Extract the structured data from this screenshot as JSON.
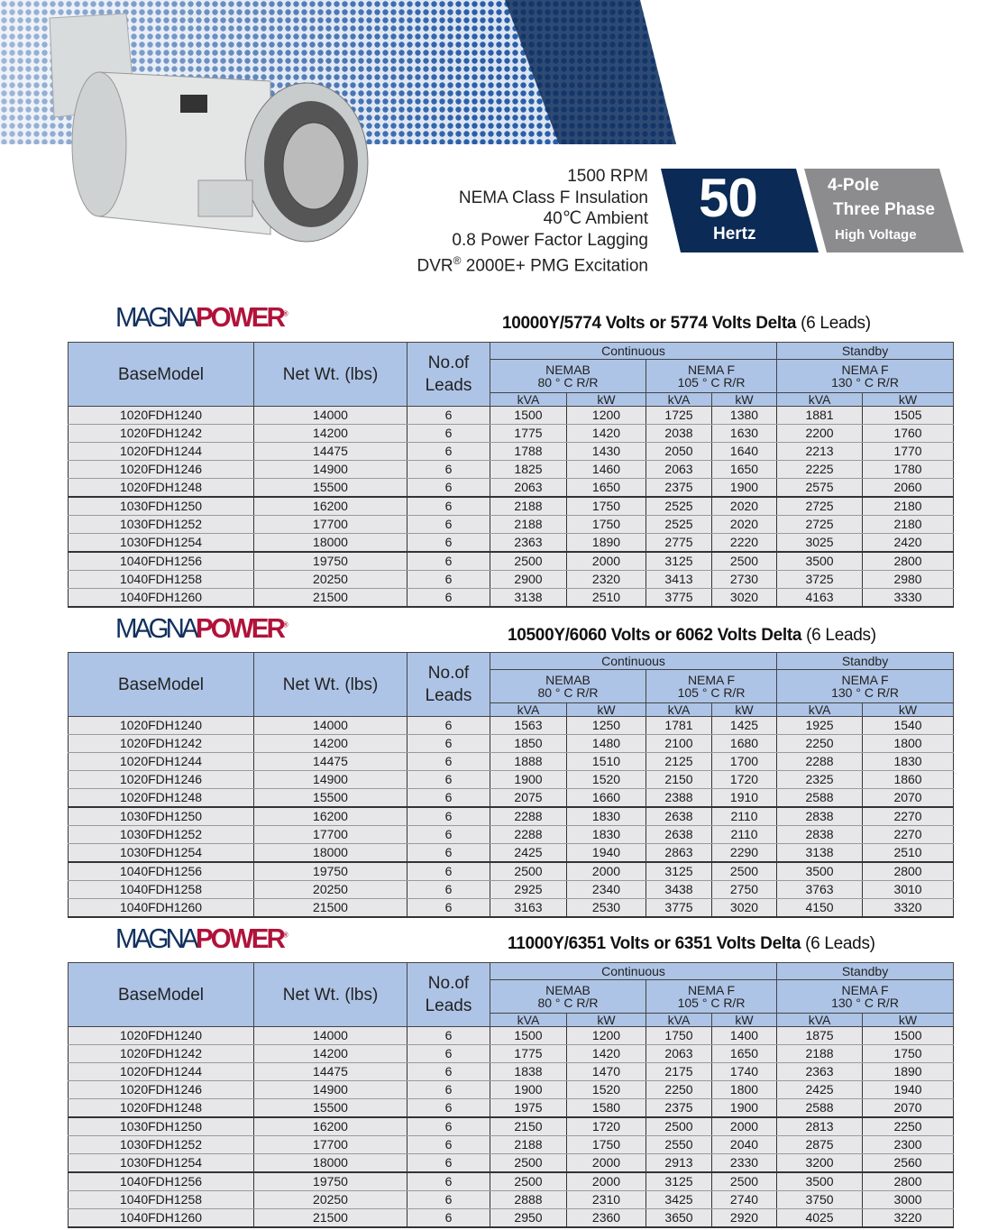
{
  "specs": {
    "lines": [
      "1500 RPM",
      "NEMA Class F Insulation",
      "40℃ Ambient",
      "0.8 Power Factor Lagging"
    ],
    "excitation_prefix": "DVR",
    "excitation_reg": "®",
    "excitation_suffix": " 2000E+ PMG Excitation"
  },
  "frequency": {
    "value": "50",
    "unit": "Hertz"
  },
  "phase": {
    "poles": "4-Pole",
    "phase": "Three Phase",
    "voltage": "High Voltage"
  },
  "colors": {
    "navy": "#0b2a55",
    "header_blue": "#aec4e6",
    "logo_red": "#b0133a",
    "logo_blue": "#12305f"
  },
  "logo": {
    "part1": "MAGNA",
    "part2": "POWER",
    "reg": "®"
  },
  "headers": {
    "base_model": "BaseModel",
    "net_wt": "Net Wt. (lbs)",
    "leads_1": "No.of",
    "leads_2": "Leads",
    "continuous": "Continuous",
    "standby": "Standby",
    "nema_b": "NEMAB",
    "nema_b_temp": "80 ° C R/R",
    "nema_f1": "NEMA F",
    "nema_f1_temp": "105 ° C R/R",
    "nema_f2": "NEMA F",
    "nema_f2_temp": "130 ° C R/R",
    "kva": "kVA",
    "kw": "kW"
  },
  "tables": [
    {
      "title_bold": "10000Y/5774 Volts or 5774 Volts Delta",
      "title_rest": " (6 Leads)",
      "rows": [
        [
          "1020FDH1240",
          "14000",
          "6",
          "1500",
          "1200",
          "1725",
          "1380",
          "1881",
          "1505"
        ],
        [
          "1020FDH1242",
          "14200",
          "6",
          "1775",
          "1420",
          "2038",
          "1630",
          "2200",
          "1760"
        ],
        [
          "1020FDH1244",
          "14475",
          "6",
          "1788",
          "1430",
          "2050",
          "1640",
          "2213",
          "1770"
        ],
        [
          "1020FDH1246",
          "14900",
          "6",
          "1825",
          "1460",
          "2063",
          "1650",
          "2225",
          "1780"
        ],
        [
          "1020FDH1248",
          "15500",
          "6",
          "2063",
          "1650",
          "2375",
          "1900",
          "2575",
          "2060"
        ],
        [
          "1030FDH1250",
          "16200",
          "6",
          "2188",
          "1750",
          "2525",
          "2020",
          "2725",
          "2180"
        ],
        [
          "1030FDH1252",
          "17700",
          "6",
          "2188",
          "1750",
          "2525",
          "2020",
          "2725",
          "2180"
        ],
        [
          "1030FDH1254",
          "18000",
          "6",
          "2363",
          "1890",
          "2775",
          "2220",
          "3025",
          "2420"
        ],
        [
          "1040FDH1256",
          "19750",
          "6",
          "2500",
          "2000",
          "3125",
          "2500",
          "3500",
          "2800"
        ],
        [
          "1040FDH1258",
          "20250",
          "6",
          "2900",
          "2320",
          "3413",
          "2730",
          "3725",
          "2980"
        ],
        [
          "1040FDH1260",
          "21500",
          "6",
          "3138",
          "2510",
          "3775",
          "3020",
          "4163",
          "3330"
        ]
      ]
    },
    {
      "title_bold": "10500Y/6060  Volts or 6062 Volts Delta",
      "title_rest": " (6 Leads)",
      "rows": [
        [
          "1020FDH1240",
          "14000",
          "6",
          "1563",
          "1250",
          "1781",
          "1425",
          "1925",
          "1540"
        ],
        [
          "1020FDH1242",
          "14200",
          "6",
          "1850",
          "1480",
          "2100",
          "1680",
          "2250",
          "1800"
        ],
        [
          "1020FDH1244",
          "14475",
          "6",
          "1888",
          "1510",
          "2125",
          "1700",
          "2288",
          "1830"
        ],
        [
          "1020FDH1246",
          "14900",
          "6",
          "1900",
          "1520",
          "2150",
          "1720",
          "2325",
          "1860"
        ],
        [
          "1020FDH1248",
          "15500",
          "6",
          "2075",
          "1660",
          "2388",
          "1910",
          "2588",
          "2070"
        ],
        [
          "1030FDH1250",
          "16200",
          "6",
          "2288",
          "1830",
          "2638",
          "2110",
          "2838",
          "2270"
        ],
        [
          "1030FDH1252",
          "17700",
          "6",
          "2288",
          "1830",
          "2638",
          "2110",
          "2838",
          "2270"
        ],
        [
          "1030FDH1254",
          "18000",
          "6",
          "2425",
          "1940",
          "2863",
          "2290",
          "3138",
          "2510"
        ],
        [
          "1040FDH1256",
          "19750",
          "6",
          "2500",
          "2000",
          "3125",
          "2500",
          "3500",
          "2800"
        ],
        [
          "1040FDH1258",
          "20250",
          "6",
          "2925",
          "2340",
          "3438",
          "2750",
          "3763",
          "3010"
        ],
        [
          "1040FDH1260",
          "21500",
          "6",
          "3163",
          "2530",
          "3775",
          "3020",
          "4150",
          "3320"
        ]
      ]
    },
    {
      "title_bold": "11000Y/6351  Volts or 6351 Volts Delta",
      "title_rest": " (6 Leads)",
      "rows": [
        [
          "1020FDH1240",
          "14000",
          "6",
          "1500",
          "1200",
          "1750",
          "1400",
          "1875",
          "1500"
        ],
        [
          "1020FDH1242",
          "14200",
          "6",
          "1775",
          "1420",
          "2063",
          "1650",
          "2188",
          "1750"
        ],
        [
          "1020FDH1244",
          "14475",
          "6",
          "1838",
          "1470",
          "2175",
          "1740",
          "2363",
          "1890"
        ],
        [
          "1020FDH1246",
          "14900",
          "6",
          "1900",
          "1520",
          "2250",
          "1800",
          "2425",
          "1940"
        ],
        [
          "1020FDH1248",
          "15500",
          "6",
          "1975",
          "1580",
          "2375",
          "1900",
          "2588",
          "2070"
        ],
        [
          "1030FDH1250",
          "16200",
          "6",
          "2150",
          "1720",
          "2500",
          "2000",
          "2813",
          "2250"
        ],
        [
          "1030FDH1252",
          "17700",
          "6",
          "2188",
          "1750",
          "2550",
          "2040",
          "2875",
          "2300"
        ],
        [
          "1030FDH1254",
          "18000",
          "6",
          "2500",
          "2000",
          "2913",
          "2330",
          "3200",
          "2560"
        ],
        [
          "1040FDH1256",
          "19750",
          "6",
          "2500",
          "2000",
          "3125",
          "2500",
          "3500",
          "2800"
        ],
        [
          "1040FDH1258",
          "20250",
          "6",
          "2888",
          "2310",
          "3425",
          "2740",
          "3750",
          "3000"
        ],
        [
          "1040FDH1260",
          "21500",
          "6",
          "2950",
          "2360",
          "3650",
          "2920",
          "4025",
          "3220"
        ]
      ]
    }
  ]
}
